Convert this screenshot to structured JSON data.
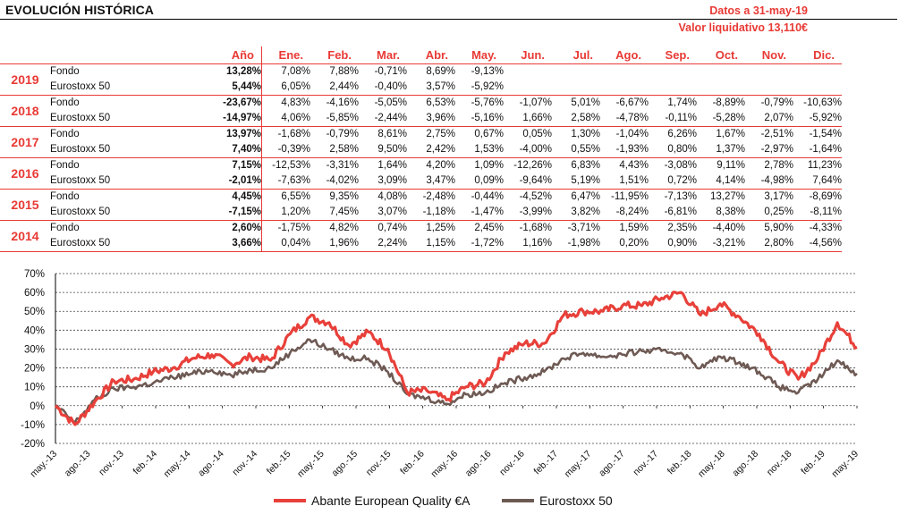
{
  "title": "EVOLUCIÓN HISTÓRICA",
  "info": {
    "date": "Datos a 31-may-19",
    "nav": "Valor liquidativo 13,110€"
  },
  "table": {
    "headers": [
      "Año",
      "Ene.",
      "Feb.",
      "Mar.",
      "Abr.",
      "May.",
      "Jun.",
      "Jul.",
      "Ago.",
      "Sep.",
      "Oct.",
      "Nov.",
      "Dic."
    ],
    "years": [
      {
        "year": "2019",
        "rows": [
          {
            "label": "Fondo",
            "values": [
              "13,28%",
              "7,08%",
              "7,88%",
              "-0,71%",
              "8,69%",
              "-9,13%",
              "",
              "",
              "",
              "",
              "",
              "",
              ""
            ]
          },
          {
            "label": "Eurostoxx 50",
            "values": [
              "5,44%",
              "6,05%",
              "2,44%",
              "-0,40%",
              "3,57%",
              "-5,92%",
              "",
              "",
              "",
              "",
              "",
              "",
              ""
            ]
          }
        ]
      },
      {
        "year": "2018",
        "rows": [
          {
            "label": "Fondo",
            "values": [
              "-23,67%",
              "4,83%",
              "-4,16%",
              "-5,05%",
              "6,53%",
              "-5,76%",
              "-1,07%",
              "5,01%",
              "-6,67%",
              "1,74%",
              "-8,89%",
              "-0,79%",
              "-10,63%"
            ]
          },
          {
            "label": "Eurostoxx 50",
            "values": [
              "-14,97%",
              "4,06%",
              "-5,85%",
              "-2,44%",
              "3,96%",
              "-5,16%",
              "1,66%",
              "2,58%",
              "-4,78%",
              "-0,11%",
              "-5,28%",
              "2,07%",
              "-5,92%"
            ]
          }
        ]
      },
      {
        "year": "2017",
        "rows": [
          {
            "label": "Fondo",
            "values": [
              "13,97%",
              "-1,68%",
              "-0,79%",
              "8,61%",
              "2,75%",
              "0,67%",
              "0,05%",
              "1,30%",
              "-1,04%",
              "6,26%",
              "1,67%",
              "-2,51%",
              "-1,54%"
            ]
          },
          {
            "label": "Eurostoxx 50",
            "values": [
              "7,40%",
              "-0,39%",
              "2,58%",
              "9,50%",
              "2,42%",
              "1,53%",
              "-4,00%",
              "0,55%",
              "-1,93%",
              "0,80%",
              "1,37%",
              "-2,97%",
              "-1,64%"
            ]
          }
        ]
      },
      {
        "year": "2016",
        "rows": [
          {
            "label": "Fondo",
            "values": [
              "7,15%",
              "-12,53%",
              "-3,31%",
              "1,64%",
              "4,20%",
              "1,09%",
              "-12,26%",
              "6,83%",
              "4,43%",
              "-3,08%",
              "9,11%",
              "2,78%",
              "11,23%"
            ]
          },
          {
            "label": "Eurostoxx 50",
            "values": [
              "-2,01%",
              "-7,63%",
              "-4,02%",
              "3,09%",
              "3,47%",
              "0,09%",
              "-9,64%",
              "5,19%",
              "1,51%",
              "0,72%",
              "4,14%",
              "-4,98%",
              "7,64%"
            ]
          }
        ]
      },
      {
        "year": "2015",
        "rows": [
          {
            "label": "Fondo",
            "values": [
              "4,45%",
              "6,55%",
              "9,35%",
              "4,08%",
              "-2,48%",
              "-0,44%",
              "-4,52%",
              "6,47%",
              "-11,95%",
              "-7,13%",
              "13,27%",
              "3,17%",
              "-8,69%"
            ]
          },
          {
            "label": "Eurostoxx 50",
            "values": [
              "-7,15%",
              "1,20%",
              "7,45%",
              "3,07%",
              "-1,18%",
              "-1,47%",
              "-3,99%",
              "3,82%",
              "-8,24%",
              "-6,81%",
              "8,38%",
              "0,25%",
              "-8,11%"
            ]
          }
        ]
      },
      {
        "year": "2014",
        "rows": [
          {
            "label": "Fondo",
            "values": [
              "2,60%",
              "-1,75%",
              "4,82%",
              "0,74%",
              "1,25%",
              "2,45%",
              "-1,68%",
              "-3,71%",
              "1,59%",
              "2,35%",
              "-4,40%",
              "5,90%",
              "-4,33%"
            ]
          },
          {
            "label": "Eurostoxx 50",
            "values": [
              "3,66%",
              "0,04%",
              "1,96%",
              "2,24%",
              "1,15%",
              "-1,72%",
              "1,16%",
              "-1,98%",
              "0,20%",
              "0,90%",
              "-3,21%",
              "2,80%",
              "-4,56%"
            ]
          }
        ]
      }
    ]
  },
  "chart_data": {
    "type": "line",
    "ylim": [
      -20,
      70
    ],
    "yticks": [
      "-20%",
      "-10%",
      "0%",
      "10%",
      "20%",
      "30%",
      "40%",
      "50%",
      "60%",
      "70%"
    ],
    "ytick_values": [
      -20,
      -10,
      0,
      10,
      20,
      30,
      40,
      50,
      60,
      70
    ],
    "x_labels": [
      "may.-13",
      "ago.-13",
      "nov.-13",
      "feb.-14",
      "may.-14",
      "ago.-14",
      "nov.-14",
      "feb.-15",
      "may.-15",
      "ago.-15",
      "nov.-15",
      "feb.-16",
      "may.-16",
      "ago.-16",
      "nov.-16",
      "feb.-17",
      "may.-17",
      "ago.-17",
      "nov.-17",
      "feb.-18",
      "may.-18",
      "ago.-18",
      "nov.-18",
      "feb.-19",
      "may.-19"
    ],
    "series": [
      {
        "name": "Abante European Quality €A",
        "color": "#e8403a",
        "values": [
          0,
          -10,
          2,
          13,
          14,
          18,
          20,
          25,
          27,
          22,
          26,
          24,
          38,
          47,
          44,
          32,
          39,
          30,
          7,
          8,
          3,
          10,
          12,
          28,
          33,
          33,
          48,
          50,
          50,
          53,
          53,
          57,
          60,
          48,
          54,
          47,
          38,
          23,
          14,
          25,
          44,
          31
        ]
      },
      {
        "name": "Eurostoxx 50",
        "color": "#6e5a54",
        "values": [
          0,
          -9,
          3,
          9,
          10,
          12,
          15,
          17,
          19,
          16,
          19,
          20,
          28,
          35,
          30,
          25,
          25,
          18,
          6,
          4,
          1,
          6,
          7,
          12,
          15,
          18,
          25,
          28,
          26,
          27,
          29,
          29,
          28,
          20,
          26,
          23,
          18,
          10,
          7,
          14,
          24,
          17
        ]
      }
    ]
  }
}
